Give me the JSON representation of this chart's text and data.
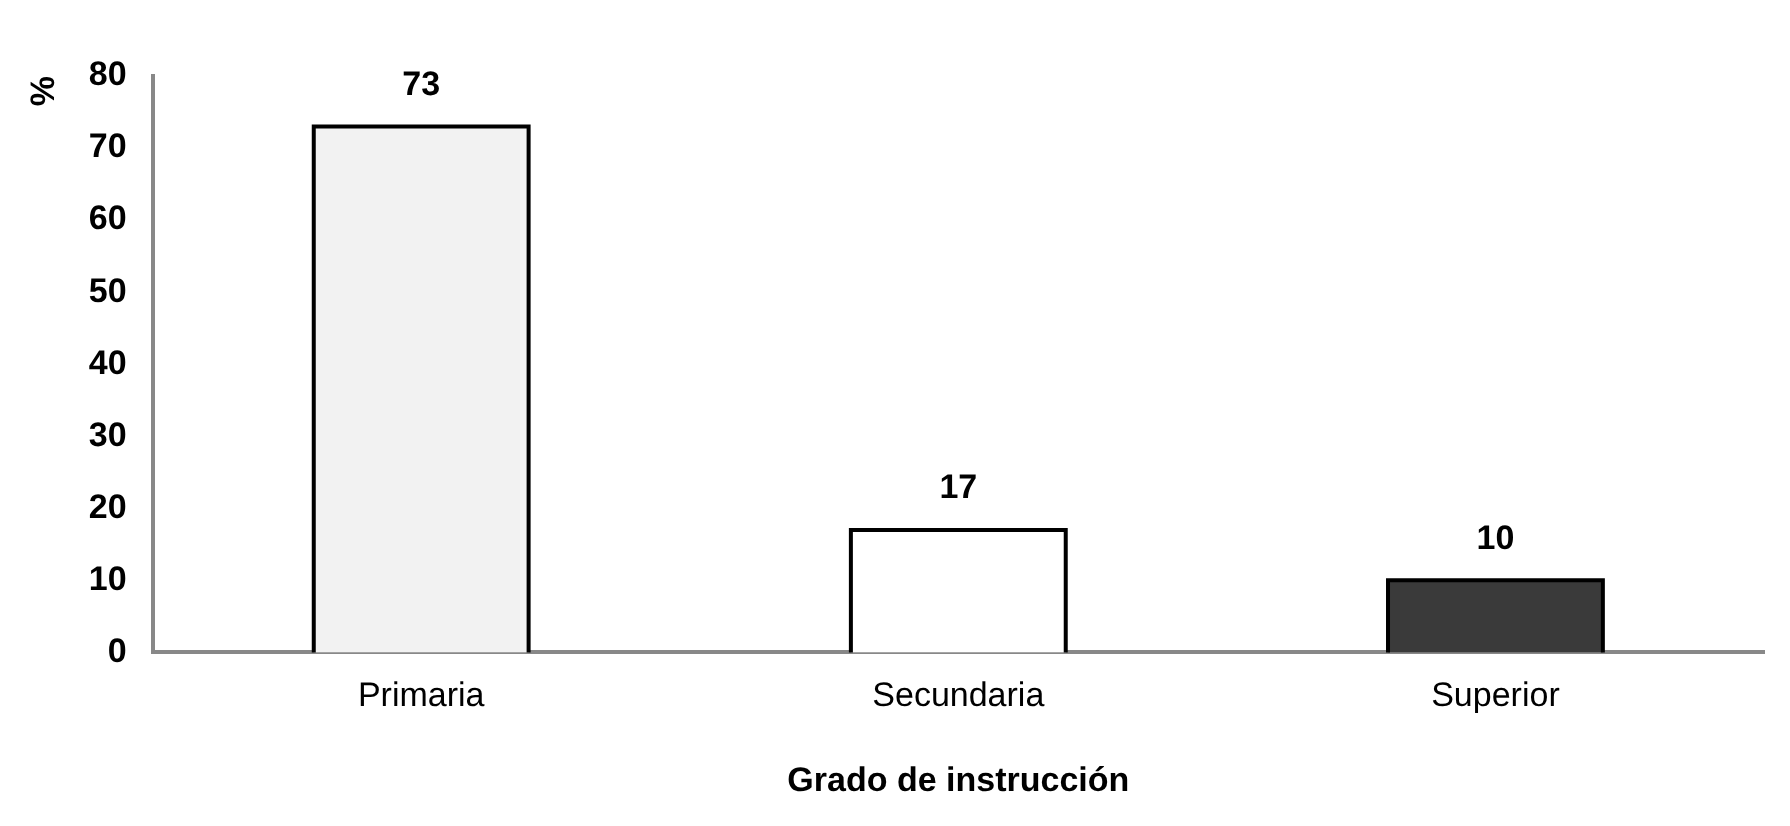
{
  "chart_data": {
    "type": "bar",
    "xlabel": "Grado de instrucción",
    "ylabel": "%",
    "categories": [
      "Primaria",
      "Secundaria",
      "Superior"
    ],
    "values": [
      73,
      17,
      10
    ],
    "colors": [
      "#f2f2f2",
      "#ffffff",
      "#3a3a3a"
    ],
    "ylim": [
      0,
      80
    ],
    "yticks": [
      0,
      10,
      20,
      30,
      40,
      50,
      60,
      70,
      80
    ],
    "grid": false,
    "legend": false,
    "data_labels": true
  }
}
